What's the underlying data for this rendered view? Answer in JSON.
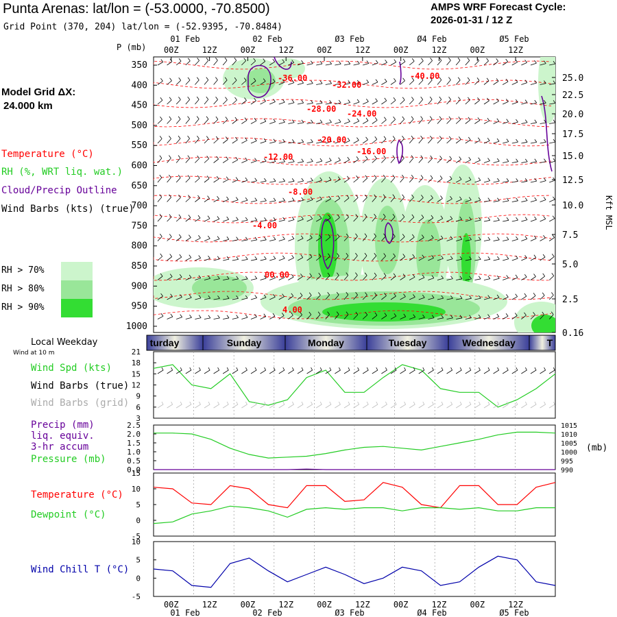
{
  "header": {
    "title": "Punta Arenas:  lat/lon = (-53.0000, -70.8500)",
    "subtitle": "Grid Point (370, 204) lat/lon = (-52.9395, -70.8484)",
    "cycle_label": "AMPS WRF Forecast Cycle:",
    "cycle_value": "2026-01-31 / 12  Z",
    "grid_label": "Model Grid ΔX:",
    "grid_value": " 24.000 km"
  },
  "legend": {
    "temperature": "Temperature (°C)",
    "rh": "RH (%, WRT liq. wat.)",
    "cloud": "Cloud/Precip Outline",
    "wind_barbs": "Wind Barbs (kts) (true)",
    "rh70": "RH > 70%",
    "rh80": "RH > 80%",
    "rh90": "RH > 90%"
  },
  "colors": {
    "temperature": "#ff0000",
    "rh": "#22cc22",
    "cloud": "#660099",
    "wind_chill": "#0000aa",
    "rh70": "#ccf5cc",
    "rh80": "#99e699",
    "rh90": "#33dd33",
    "weekday_bar": "#3a3f9a",
    "weekday_light": "#f0f0e0"
  },
  "time_axis": {
    "top_hours": [
      "00Z",
      "12Z",
      "00Z",
      "12Z",
      "00Z",
      "12Z",
      "00Z",
      "12Z",
      "00Z",
      "12Z"
    ],
    "top_dates": [
      "01 Feb",
      "02 Feb",
      "Ø3 Feb",
      "Ø4 Feb",
      "Ø5 Feb"
    ],
    "bottom_hours": [
      "00Z",
      "12Z",
      "00Z",
      "12Z",
      "00Z",
      "12Z",
      "00Z",
      "12Z",
      "00Z",
      "12Z"
    ],
    "bottom_dates": [
      "01 Feb",
      "02 Feb",
      "Ø3 Feb",
      "Ø4 Feb",
      "Ø5 Feb"
    ]
  },
  "pressure_axis": {
    "label": "P (mb)",
    "ticks": [
      "350",
      "400",
      "450",
      "500",
      "550",
      "600",
      "650",
      "700",
      "750",
      "800",
      "850",
      "900",
      "950",
      "1000"
    ]
  },
  "height_axis": {
    "label": "Kft MSL",
    "ticks": [
      "25.0",
      "22.5",
      "20.0",
      "17.5",
      "15.0",
      "12.5",
      "10.0",
      "7.5",
      "5.0",
      "2.5",
      "0.16"
    ]
  },
  "temperature_contour_labels": [
    "-36.00",
    "-32.00",
    "-28.00",
    "-24.00",
    "-20.00",
    "-16.00",
    "-12.00",
    "-8.00",
    "-4.00",
    "00.00",
    "4.00",
    "-40.00"
  ],
  "weekdays": {
    "label": "Local Weekday",
    "wind_note": "Wind at 10 m",
    "days": [
      "turday",
      "Sunday",
      "Monday",
      "Tuesday",
      "Wednesday",
      "T"
    ]
  },
  "panels": {
    "wind": {
      "labels": [
        "Wind Spd (kts)",
        "Wind Barbs (true)",
        "Wind Barbs (grid)"
      ],
      "yticks": [
        "21",
        "18",
        "15",
        "12",
        "9",
        "6",
        "3"
      ]
    },
    "precip": {
      "labels": [
        "Precip (mm)",
        "liq. equiv.",
        "3-hr accum",
        "Pressure (mb)"
      ],
      "yticks": [
        "2.5",
        "2.0",
        "1.5",
        "1.0",
        "0.5",
        "0.0"
      ],
      "yticks_right": [
        "1015",
        "1010",
        "1005",
        "1000",
        "995",
        "990"
      ],
      "right_unit": "(mb)"
    },
    "temp": {
      "labels": [
        "Temperature (°C)",
        "Dewpoint (°C)"
      ],
      "yticks": [
        "15",
        "10",
        "5",
        "0",
        "-5"
      ]
    },
    "chill": {
      "labels": [
        "Wind Chill T (°C)"
      ],
      "yticks": [
        "10",
        "5",
        "0",
        "-5"
      ]
    }
  },
  "chart_data": [
    {
      "type": "line",
      "title": "Wind Spd (kts)",
      "x_hours": [
        0,
        6,
        12,
        18,
        24,
        30,
        36,
        42,
        48,
        54,
        60,
        66,
        72,
        78,
        84,
        90,
        96,
        102,
        108,
        114,
        120,
        126
      ],
      "ylim": [
        3,
        21
      ],
      "series": [
        {
          "name": "Wind Spd (kts)",
          "color": "#22cc22",
          "values": [
            16.5,
            17.5,
            12,
            11,
            15,
            7.5,
            6.5,
            8,
            14,
            16,
            10,
            10,
            14,
            17.5,
            16,
            11,
            10,
            10,
            6,
            8,
            11,
            15
          ]
        }
      ]
    },
    {
      "type": "line",
      "title": "Pressure (mb)",
      "x_hours": [
        0,
        6,
        12,
        18,
        24,
        30,
        36,
        42,
        48,
        54,
        60,
        66,
        72,
        78,
        84,
        90,
        96,
        102,
        108,
        114,
        120,
        126
      ],
      "ylim": [
        990,
        1015
      ],
      "series": [
        {
          "name": "Pressure (mb)",
          "color": "#22cc22",
          "values": [
            1010.5,
            1010.5,
            1010,
            1007,
            1002,
            998.5,
            996.5,
            997,
            997.5,
            999,
            1001,
            1002.5,
            1003,
            1002,
            1001,
            1003,
            1005,
            1007,
            1009.5,
            1011,
            1011,
            1010.5
          ]
        },
        {
          "name": "Precip (mm)",
          "color": "#660099",
          "values": [
            0,
            0,
            0,
            0,
            0,
            0,
            0,
            0,
            0.03,
            0,
            0,
            0,
            0,
            0,
            0,
            0,
            0,
            0,
            0,
            0,
            0,
            0
          ]
        }
      ]
    },
    {
      "type": "line",
      "title": "Temperature / Dewpoint (°C)",
      "x_hours": [
        0,
        6,
        12,
        18,
        24,
        30,
        36,
        42,
        48,
        54,
        60,
        66,
        72,
        78,
        84,
        90,
        96,
        102,
        108,
        114,
        120,
        126
      ],
      "ylim": [
        -5,
        15
      ],
      "series": [
        {
          "name": "Temperature (°C)",
          "color": "#ff0000",
          "values": [
            10.5,
            10,
            5.5,
            5,
            11,
            10,
            5,
            4,
            11,
            11,
            6,
            6.5,
            12,
            10.5,
            5,
            4,
            11,
            11,
            5,
            5,
            10.5,
            12
          ]
        },
        {
          "name": "Dewpoint (°C)",
          "color": "#22cc22",
          "values": [
            -1,
            -0.5,
            2,
            3,
            4.5,
            4,
            3,
            1,
            3.5,
            4,
            3.5,
            4,
            4,
            3,
            4,
            4,
            3.5,
            4,
            3,
            3,
            4,
            4
          ]
        }
      ]
    },
    {
      "type": "line",
      "title": "Wind Chill T (°C)",
      "x_hours": [
        0,
        6,
        12,
        18,
        24,
        30,
        36,
        42,
        48,
        54,
        60,
        66,
        72,
        78,
        84,
        90,
        96,
        102,
        108,
        114,
        120,
        126
      ],
      "ylim": [
        -5,
        10
      ],
      "series": [
        {
          "name": "Wind Chill T (°C)",
          "color": "#0000aa",
          "values": [
            2.5,
            2,
            -2,
            -2.5,
            4,
            5.5,
            2,
            -1,
            1,
            3,
            1,
            -1.5,
            0,
            3,
            2,
            -2,
            -1,
            3,
            6,
            5,
            -1,
            -2
          ]
        }
      ]
    }
  ]
}
